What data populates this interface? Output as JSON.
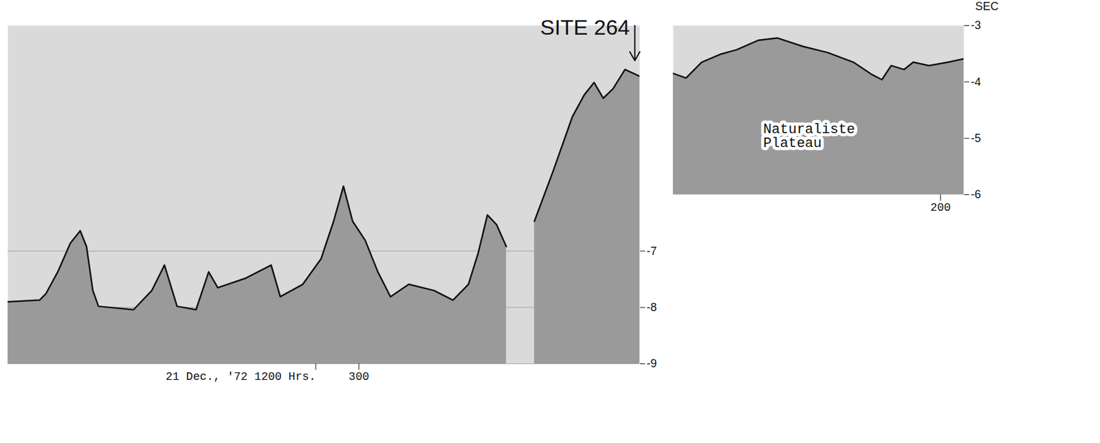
{
  "chart_data": [
    {
      "type": "line",
      "color": "#111111",
      "grid": true,
      "x": [
        250,
        254.5,
        255.4,
        257.1,
        258.9,
        260.3,
        261.2,
        262.1,
        262.9,
        267.9,
        270.5,
        272.3,
        274.1,
        276.8,
        278.6,
        279.9,
        283.9,
        287.5,
        288.8,
        292.0,
        294.6,
        296.4,
        297.8,
        299.1,
        300.9,
        302.7,
        304.5,
        307.1,
        310.7,
        313.4,
        315.6,
        317.0,
        318.3,
        319.6,
        321.0,
        322.0,
        325.0,
        327.7,
        330.4,
        332.1,
        333.5,
        334.8,
        336.2,
        337.9,
        340
      ],
      "values": [
        -7.9,
        -7.87,
        -7.76,
        -7.37,
        -6.86,
        -6.64,
        -6.92,
        -7.7,
        -7.98,
        -8.04,
        -7.7,
        -7.25,
        -7.98,
        -8.04,
        -7.37,
        -7.65,
        -7.48,
        -7.25,
        -7.81,
        -7.59,
        -7.14,
        -6.47,
        -5.85,
        -6.47,
        -6.81,
        -7.37,
        -7.81,
        -7.59,
        -7.7,
        -7.87,
        -7.59,
        -7.03,
        -6.36,
        -6.53,
        -6.92,
        null,
        -6.47,
        -5.57,
        -4.62,
        -4.23,
        -4.01,
        -4.29,
        -4.12,
        -3.78,
        -3.9
      ],
      "xlim": [
        250,
        340
      ],
      "ylim": [
        -9,
        -3
      ],
      "xticks": [
        {
          "value": 294.4,
          "label": "21 Dec., '72 1200 Hrs."
        },
        300
      ],
      "yticks": [
        -7,
        -8,
        -9
      ],
      "annotations": [
        {
          "text": "SITE 264",
          "x": 339.3,
          "y": -3.62
        }
      ]
    },
    {
      "type": "line",
      "color": "#111111",
      "grid": false,
      "x": [
        154,
        156.2,
        158.9,
        162.1,
        164.9,
        168.7,
        171.9,
        176.3,
        180.6,
        185.0,
        188.2,
        189.9,
        191.5,
        193.7,
        195.3,
        198.0,
        201.3,
        204
      ],
      "values": [
        -3.85,
        -3.93,
        -3.65,
        -3.51,
        -3.43,
        -3.26,
        -3.22,
        -3.37,
        -3.48,
        -3.65,
        -3.87,
        -3.96,
        -3.71,
        -3.78,
        -3.65,
        -3.71,
        -3.65,
        -3.59
      ],
      "xlim": [
        154,
        204
      ],
      "ylim": [
        -6,
        -3
      ],
      "xticks": [
        200
      ],
      "yticks": [
        -3,
        -4,
        -5,
        -6
      ],
      "ylabel": "SEC",
      "annotations": [
        {
          "text": "Naturaliste Plateau",
          "x": 169.5,
          "y": -4.95
        }
      ]
    }
  ]
}
